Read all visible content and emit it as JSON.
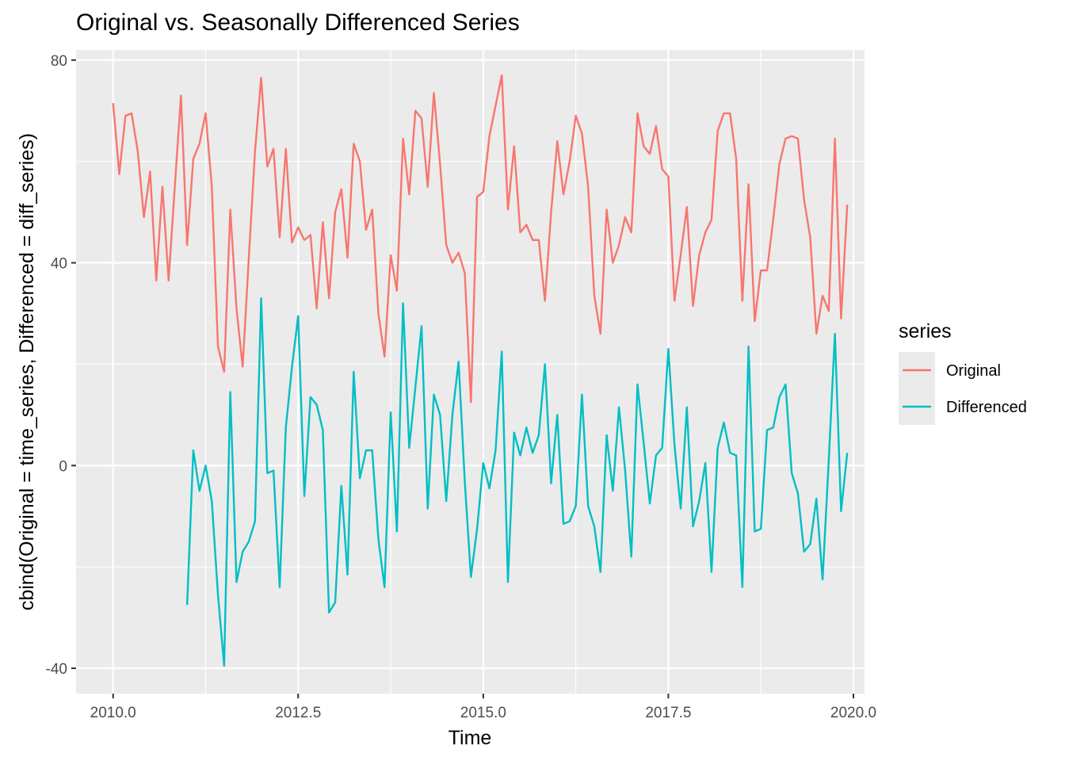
{
  "chart_data": {
    "type": "line",
    "title": "Original vs. Seasonally Differenced Series",
    "xlabel": "Time",
    "ylabel": "cbind(Original = time_series, Differenced = diff_series)",
    "xlim": [
      2009.5,
      2020.15
    ],
    "ylim": [
      -45,
      82
    ],
    "xticks": [
      2010.0,
      2012.5,
      2015.0,
      2017.5,
      2020.0
    ],
    "xtick_labels": [
      "2010.0",
      "2012.5",
      "2015.0",
      "2017.5",
      "2020.0"
    ],
    "yticks": [
      -40,
      0,
      40,
      80
    ],
    "ytick_labels": [
      "-40",
      "0",
      "40",
      "80"
    ],
    "legend_title": "series",
    "legend_position": "right",
    "series": [
      {
        "name": "Original",
        "color": "#F8766D",
        "start": 2010.0,
        "step": 0.0833333,
        "values": [
          71.5,
          57.5,
          69,
          69.5,
          62,
          49,
          58,
          36.5,
          55,
          36.5,
          55,
          73,
          43.5,
          60.5,
          63.5,
          69.5,
          55,
          23.5,
          18.5,
          50.5,
          31,
          19.5,
          41,
          62,
          76.5,
          59,
          62.5,
          45,
          62.5,
          44,
          47,
          44.5,
          45.5,
          31,
          48,
          33,
          50,
          54.5,
          41,
          63.5,
          60,
          46.5,
          50.5,
          30,
          21.5,
          41.5,
          34.5,
          64.5,
          53.5,
          70,
          68.5,
          55,
          73.5,
          59.5,
          43.5,
          40,
          42,
          38,
          12.5,
          53,
          54,
          65,
          71,
          77,
          50.5,
          63,
          46,
          47.5,
          44.5,
          44.5,
          32.5,
          50,
          64,
          53.5,
          60,
          69,
          65.5,
          55,
          33.5,
          26,
          50.5,
          40,
          43.5,
          49,
          46,
          69.5,
          63,
          61.5,
          67,
          58.5,
          57,
          32.5,
          41.5,
          51,
          31.5,
          41.5,
          46,
          48.5,
          66,
          69.5,
          69.5,
          60.5,
          32.5,
          55.5,
          28.5,
          38.5,
          38.5,
          48.5,
          59.5,
          64.5,
          65,
          64.5,
          52.5,
          45,
          26,
          33.5,
          30.5,
          64.5,
          29,
          51.5
        ]
      },
      {
        "name": "Differenced",
        "color": "#00BFC4",
        "start": 2011.0,
        "step": 0.0833333,
        "values": [
          -27.5,
          3,
          -5,
          0,
          -7,
          -25.5,
          -39.5,
          14.5,
          -23,
          -17,
          -15,
          -11,
          33,
          -1.5,
          -1,
          -24,
          7.5,
          19.5,
          29.5,
          -6,
          13.5,
          12,
          7,
          -29,
          -27,
          -4,
          -21.5,
          18.5,
          -2.5,
          3,
          3,
          -14.5,
          -24,
          10.5,
          -13,
          32,
          3.5,
          15.5,
          27.5,
          -8.5,
          14,
          10,
          -7,
          10,
          20.5,
          -3,
          -22,
          -12.5,
          0.5,
          -4.5,
          3,
          22.5,
          -23,
          6.5,
          2,
          7.5,
          2.5,
          6,
          20,
          -3.5,
          10,
          -11.5,
          -11,
          -8,
          14,
          -8,
          -12,
          -21,
          6,
          -5,
          11.5,
          -1,
          -18,
          16,
          4.5,
          -7.5,
          2,
          3.5,
          23,
          4,
          -8.5,
          11.5,
          -12,
          -7,
          0.5,
          -21,
          3.5,
          8.5,
          2.5,
          2,
          -24,
          23.5,
          -13,
          -12.5,
          7,
          7.5,
          13.5,
          16,
          -1.5,
          -5.5,
          -17,
          -15.5,
          -6.5,
          -22.5,
          1,
          26,
          -9,
          2.5
        ]
      }
    ]
  }
}
